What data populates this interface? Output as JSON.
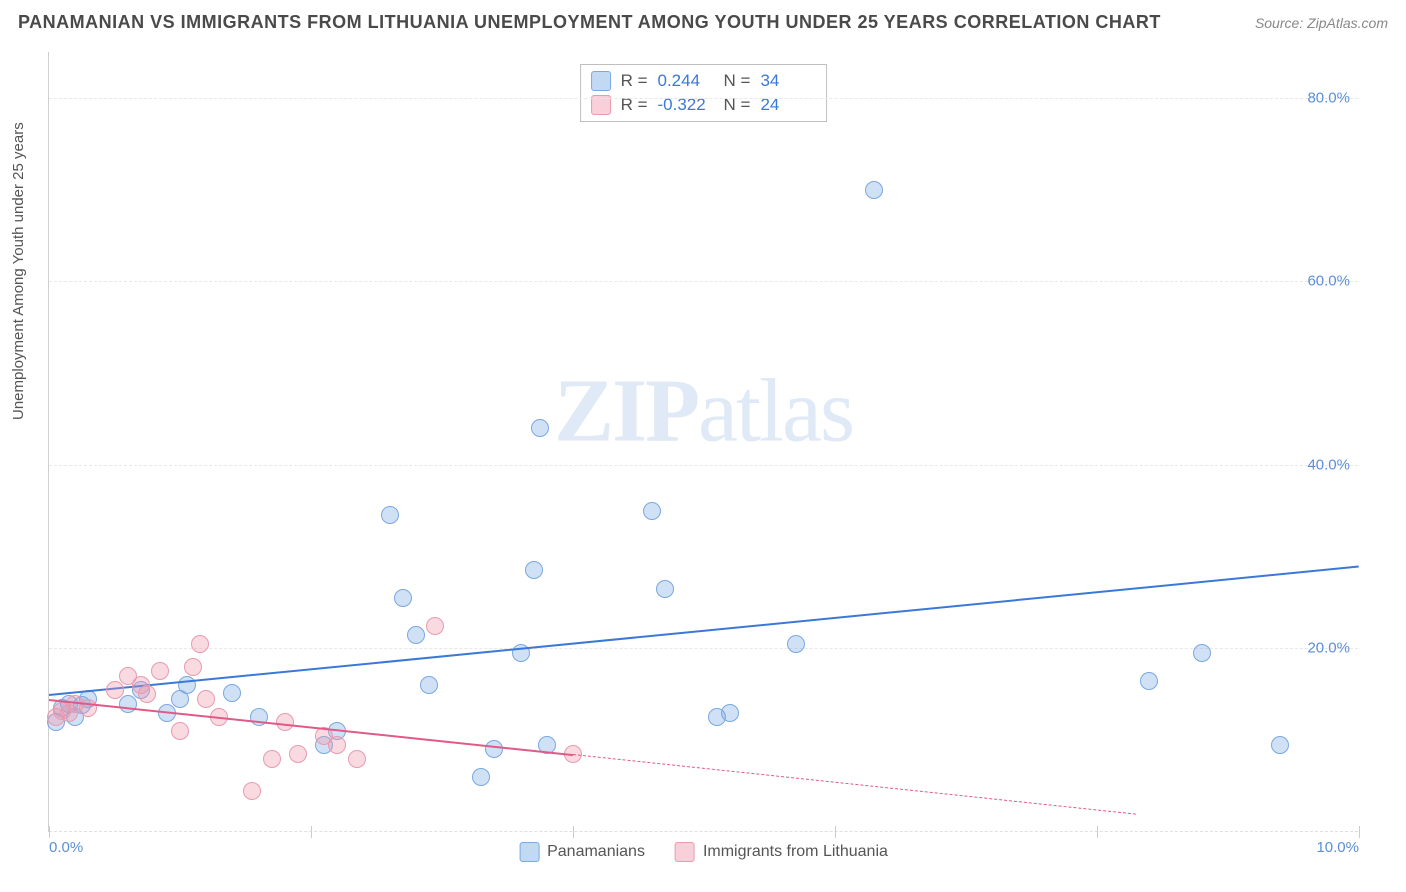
{
  "title": "PANAMANIAN VS IMMIGRANTS FROM LITHUANIA UNEMPLOYMENT AMONG YOUTH UNDER 25 YEARS CORRELATION CHART",
  "source": "Source: ZipAtlas.com",
  "ylabel": "Unemployment Among Youth under 25 years",
  "watermark_bold": "ZIP",
  "watermark_rest": "atlas",
  "chart": {
    "type": "scatter",
    "background_color": "#ffffff",
    "grid_color": "#e8e8e8",
    "axis_color": "#d0d0d0",
    "xlim": [
      0.0,
      10.0
    ],
    "ylim": [
      0.0,
      85.0
    ],
    "ytick_labels": [
      "20.0%",
      "40.0%",
      "60.0%",
      "80.0%"
    ],
    "ytick_vals": [
      20,
      40,
      60,
      80
    ],
    "xtick_labels": [
      "0.0%",
      "10.0%"
    ],
    "xtick_vals": [
      0.0,
      10.0
    ],
    "xminor_ticks": [
      0.0,
      2.0,
      4.0,
      6.0,
      8.0,
      10.0
    ],
    "label_fontsize": 15,
    "label_color": "#5b8fd6",
    "point_radius": 9,
    "series": {
      "panamanians": {
        "label": "Panamanians",
        "color": "#7aa8e0",
        "fill": "rgba(120,170,230,0.35)",
        "R": "0.244",
        "N": "34",
        "trend": {
          "x0": 0.0,
          "y0": 15.0,
          "x1": 10.0,
          "y1": 29.0,
          "color": "#3b78d8",
          "width": 2,
          "dash_from": 10.0
        },
        "points": [
          [
            0.05,
            12.0
          ],
          [
            0.1,
            13.5
          ],
          [
            0.15,
            14.0
          ],
          [
            0.2,
            12.5
          ],
          [
            0.25,
            13.8
          ],
          [
            0.3,
            14.5
          ],
          [
            0.6,
            14.0
          ],
          [
            0.7,
            15.5
          ],
          [
            0.9,
            13.0
          ],
          [
            1.0,
            14.5
          ],
          [
            1.05,
            16.0
          ],
          [
            2.1,
            9.5
          ],
          [
            2.2,
            11.0
          ],
          [
            2.6,
            34.5
          ],
          [
            2.7,
            25.5
          ],
          [
            2.8,
            21.5
          ],
          [
            2.9,
            16.0
          ],
          [
            3.3,
            6.0
          ],
          [
            3.4,
            9.0
          ],
          [
            3.6,
            19.5
          ],
          [
            3.7,
            28.5
          ],
          [
            3.75,
            44.0
          ],
          [
            3.8,
            9.5
          ],
          [
            4.6,
            35.0
          ],
          [
            4.7,
            26.5
          ],
          [
            5.1,
            12.5
          ],
          [
            5.2,
            13.0
          ],
          [
            5.7,
            20.5
          ],
          [
            6.3,
            70.0
          ],
          [
            8.4,
            16.5
          ],
          [
            8.8,
            19.5
          ],
          [
            9.4,
            9.5
          ],
          [
            1.4,
            15.2
          ],
          [
            1.6,
            12.5
          ]
        ]
      },
      "lithuania": {
        "label": "Immigrants from Lithuania",
        "color": "#e89ab0",
        "fill": "rgba(240,150,170,0.35)",
        "R": "-0.322",
        "N": "24",
        "trend": {
          "x0": 0.0,
          "y0": 14.5,
          "x1": 4.0,
          "y1": 8.5,
          "color": "#e05a88",
          "width": 2,
          "dash_from": 4.0,
          "dash_x1": 8.3,
          "dash_y1": 2.0
        },
        "points": [
          [
            0.05,
            12.5
          ],
          [
            0.1,
            13.2
          ],
          [
            0.15,
            13.0
          ],
          [
            0.2,
            14.0
          ],
          [
            0.3,
            13.5
          ],
          [
            0.5,
            15.5
          ],
          [
            0.6,
            17.0
          ],
          [
            0.7,
            16.0
          ],
          [
            0.75,
            15.0
          ],
          [
            0.85,
            17.5
          ],
          [
            1.0,
            11.0
          ],
          [
            1.1,
            18.0
          ],
          [
            1.15,
            20.5
          ],
          [
            1.2,
            14.5
          ],
          [
            1.3,
            12.5
          ],
          [
            1.55,
            4.5
          ],
          [
            1.7,
            8.0
          ],
          [
            1.8,
            12.0
          ],
          [
            1.9,
            8.5
          ],
          [
            2.1,
            10.5
          ],
          [
            2.2,
            9.5
          ],
          [
            2.35,
            8.0
          ],
          [
            2.95,
            22.5
          ],
          [
            4.0,
            8.5
          ]
        ]
      }
    }
  },
  "stats_legend": [
    {
      "swatch": "blue",
      "R_label": "R =",
      "R": "0.244",
      "N_label": "N =",
      "N": "34"
    },
    {
      "swatch": "pink",
      "R_label": "R =",
      "R": "-0.322",
      "N_label": "N =",
      "N": "24"
    }
  ]
}
